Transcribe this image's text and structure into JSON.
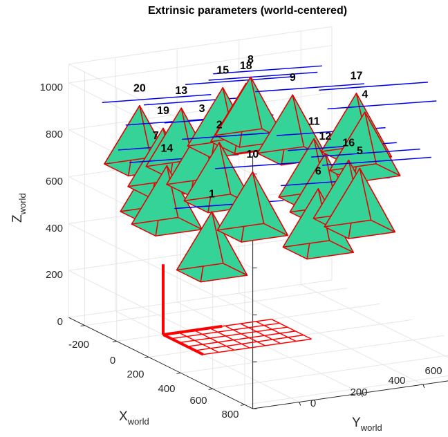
{
  "chart_data": {
    "type": "3d-scatter",
    "title": "Extrinsic parameters (world-centered)",
    "xlabel": {
      "main": "X",
      "sub": "world"
    },
    "ylabel": {
      "main": "Y",
      "sub": "world"
    },
    "zlabel": {
      "main": "Z",
      "sub": "world"
    },
    "x_ticks": [
      "-200",
      "0",
      "200",
      "400",
      "600",
      "800"
    ],
    "y_ticks": [
      "0",
      "200",
      "400",
      "600"
    ],
    "z_ticks": [
      "0",
      "200",
      "400",
      "600",
      "800",
      "1000"
    ],
    "xlim": [
      -300,
      850
    ],
    "ylim": [
      -150,
      700
    ],
    "zlim": [
      0,
      1080
    ],
    "grid": true,
    "checkerboard": {
      "rows": 5,
      "cols": 7,
      "square_mm": 50,
      "color": "#ff0000"
    },
    "camera_face_color": "#36d399",
    "camera_edge_color": "#e60000",
    "camera_axis_color": "#0000e6",
    "cameras": [
      {
        "label": "1",
        "x": 150,
        "y": 80,
        "z": 560
      },
      {
        "label": "2",
        "x": 80,
        "y": 140,
        "z": 820
      },
      {
        "label": "3",
        "x": 10,
        "y": 120,
        "z": 870
      },
      {
        "label": "4",
        "x": 100,
        "y": 600,
        "z": 870
      },
      {
        "label": "5",
        "x": 300,
        "y": 480,
        "z": 720
      },
      {
        "label": "6",
        "x": 350,
        "y": 320,
        "z": 680
      },
      {
        "label": "7",
        "x": 50,
        "y": -50,
        "z": 800
      },
      {
        "label": "8",
        "x": -150,
        "y": 360,
        "z": 980
      },
      {
        "label": "9",
        "x": -100,
        "y": 470,
        "z": 900
      },
      {
        "label": "10",
        "x": 230,
        "y": 170,
        "z": 740
      },
      {
        "label": "11",
        "x": 130,
        "y": 420,
        "z": 800
      },
      {
        "label": "12",
        "x": 200,
        "y": 420,
        "z": 760
      },
      {
        "label": "13",
        "x": -80,
        "y": 100,
        "z": 920
      },
      {
        "label": "14",
        "x": 120,
        "y": -50,
        "z": 770
      },
      {
        "label": "15",
        "x": -130,
        "y": 260,
        "z": 960
      },
      {
        "label": "16",
        "x": 250,
        "y": 470,
        "z": 740
      },
      {
        "label": "17",
        "x": -50,
        "y": 650,
        "z": 890
      },
      {
        "label": "18",
        "x": -140,
        "y": 340,
        "z": 960
      },
      {
        "label": "19",
        "x": 0,
        "y": 0,
        "z": 880
      },
      {
        "label": "20",
        "x": -70,
        "y": -40,
        "z": 960
      }
    ]
  }
}
